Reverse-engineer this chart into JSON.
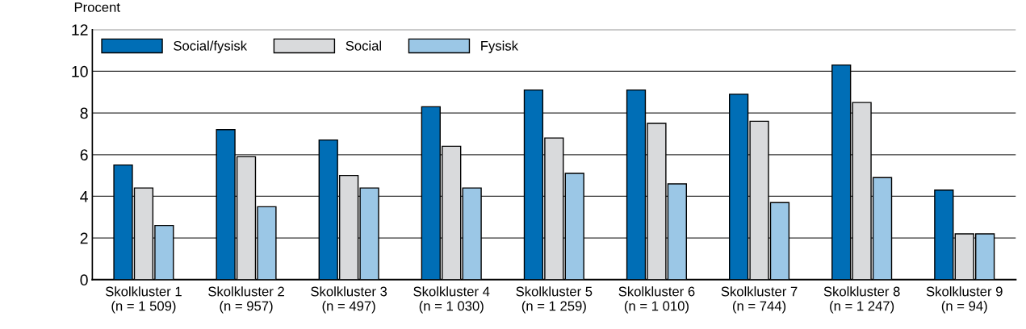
{
  "chart_data": {
    "type": "bar",
    "ylabel": "Procent",
    "categories": [
      "Skolkluster 1\n(n = 1 509)",
      "Skolkluster 2\n(n = 957)",
      "Skolkluster 3\n(n = 497)",
      "Skolkluster 4\n(n = 1 030)",
      "Skolkluster 5\n(n = 1 259)",
      "Skolkluster 6\n(n = 1 010)",
      "Skolkluster 7\n(n = 744)",
      "Skolkluster 8\n(n = 1 247)",
      "Skolkluster 9\n(n = 94)"
    ],
    "series": [
      {
        "name": "Social/fysisk",
        "color": "#006eb6",
        "values": [
          5.5,
          7.2,
          6.7,
          8.3,
          9.1,
          9.1,
          8.9,
          10.3,
          4.3
        ]
      },
      {
        "name": "Social",
        "color": "#d9dadc",
        "values": [
          4.4,
          5.9,
          5.0,
          6.4,
          6.8,
          7.5,
          7.6,
          8.5,
          2.2
        ]
      },
      {
        "name": "Fysisk",
        "color": "#9bc7e6",
        "values": [
          2.6,
          3.5,
          4.4,
          4.4,
          5.1,
          4.6,
          3.7,
          4.9,
          2.2
        ]
      }
    ],
    "ylim": [
      0,
      12
    ],
    "yticks": [
      0,
      2,
      4,
      6,
      8,
      10,
      12
    ],
    "grid": "y",
    "legend": "top left"
  }
}
